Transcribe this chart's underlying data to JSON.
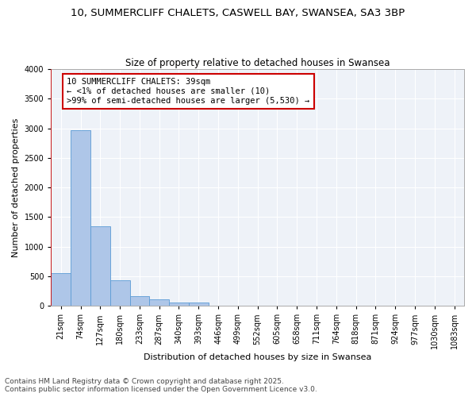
{
  "title_line1": "10, SUMMERCLIFF CHALETS, CASWELL BAY, SWANSEA, SA3 3BP",
  "title_line2": "Size of property relative to detached houses in Swansea",
  "xlabel": "Distribution of detached houses by size in Swansea",
  "ylabel": "Number of detached properties",
  "categories": [
    "21sqm",
    "74sqm",
    "127sqm",
    "180sqm",
    "233sqm",
    "287sqm",
    "340sqm",
    "393sqm",
    "446sqm",
    "499sqm",
    "552sqm",
    "605sqm",
    "658sqm",
    "711sqm",
    "764sqm",
    "818sqm",
    "871sqm",
    "924sqm",
    "977sqm",
    "1030sqm",
    "1083sqm"
  ],
  "values": [
    550,
    2970,
    1350,
    430,
    160,
    110,
    60,
    50,
    0,
    0,
    0,
    0,
    0,
    0,
    0,
    0,
    0,
    0,
    0,
    0,
    0
  ],
  "bar_color": "#aec6e8",
  "bar_edge_color": "#5b9bd5",
  "annotation_box_color": "#ffffff",
  "annotation_border_color": "#cc0000",
  "annotation_text_line1": "10 SUMMERCLIFF CHALETS: 39sqm",
  "annotation_text_line2": "← <1% of detached houses are smaller (10)",
  "annotation_text_line3": ">99% of semi-detached houses are larger (5,530) →",
  "ylim": [
    0,
    4000
  ],
  "yticks": [
    0,
    500,
    1000,
    1500,
    2000,
    2500,
    3000,
    3500,
    4000
  ],
  "background_color": "#eef2f8",
  "grid_color": "#ffffff",
  "footer_line1": "Contains HM Land Registry data © Crown copyright and database right 2025.",
  "footer_line2": "Contains public sector information licensed under the Open Government Licence v3.0.",
  "title_fontsize": 9.5,
  "subtitle_fontsize": 8.5,
  "axis_label_fontsize": 8,
  "tick_fontsize": 7,
  "annotation_fontsize": 7.5,
  "footer_fontsize": 6.5
}
